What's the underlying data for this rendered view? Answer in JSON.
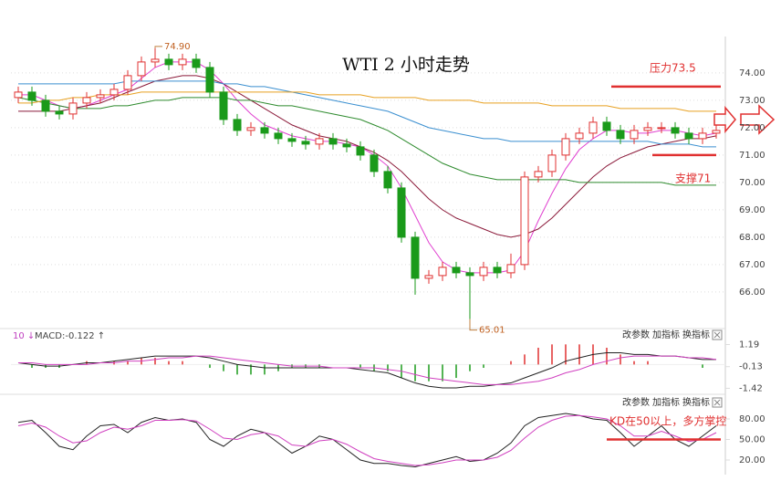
{
  "chart_data": [
    {
      "type": "candlestick",
      "title": "WTI 2 小时走势",
      "open": [
        73.1,
        73.3,
        73.0,
        72.6,
        72.5,
        72.9,
        73.1,
        73.2,
        73.4,
        73.9,
        74.4,
        74.5,
        74.3,
        74.5,
        74.2,
        73.3,
        72.3,
        71.9,
        72.0,
        71.8,
        71.6,
        71.5,
        71.4,
        71.6,
        71.4,
        71.3,
        71.0,
        70.4,
        69.8,
        68.0,
        66.5,
        66.6,
        66.9,
        66.7,
        66.6,
        66.9,
        66.7,
        67.0,
        70.2,
        70.4,
        71.0,
        71.6,
        71.8,
        72.2,
        71.9,
        71.6,
        71.9,
        72.0,
        72.0,
        71.8,
        71.6,
        71.8
      ],
      "high": [
        73.5,
        73.5,
        73.2,
        72.8,
        73.1,
        73.3,
        73.4,
        73.6,
        74.1,
        74.6,
        74.9,
        74.7,
        74.7,
        74.7,
        74.4,
        73.5,
        72.5,
        72.2,
        72.2,
        72.0,
        71.8,
        71.7,
        71.8,
        71.8,
        71.6,
        71.5,
        71.2,
        70.6,
        70.0,
        68.2,
        66.8,
        67.1,
        67.1,
        66.9,
        67.1,
        67.1,
        67.4,
        70.4,
        70.6,
        71.2,
        71.8,
        72.0,
        72.4,
        72.4,
        72.1,
        72.1,
        72.2,
        72.2,
        72.2,
        72.0,
        72.0,
        72.1
      ],
      "low": [
        72.9,
        72.8,
        72.4,
        72.3,
        72.3,
        72.7,
        72.9,
        73.0,
        73.2,
        73.7,
        74.2,
        74.1,
        74.1,
        74.0,
        73.1,
        72.1,
        71.7,
        71.7,
        71.6,
        71.4,
        71.3,
        71.2,
        71.2,
        71.2,
        71.1,
        70.8,
        70.2,
        69.6,
        67.8,
        65.9,
        66.3,
        66.4,
        66.5,
        65.01,
        66.4,
        66.5,
        66.5,
        66.8,
        70.0,
        70.2,
        70.8,
        71.4,
        71.6,
        71.7,
        71.4,
        71.4,
        71.7,
        71.8,
        71.6,
        71.4,
        71.4,
        71.6
      ],
      "close": [
        73.3,
        73.0,
        72.6,
        72.5,
        72.9,
        73.1,
        73.2,
        73.4,
        73.9,
        74.4,
        74.5,
        74.3,
        74.5,
        74.2,
        73.3,
        72.3,
        71.9,
        72.0,
        71.8,
        71.6,
        71.5,
        71.4,
        71.6,
        71.4,
        71.3,
        71.0,
        70.4,
        69.8,
        68.0,
        66.5,
        66.6,
        66.9,
        66.7,
        66.6,
        66.9,
        66.7,
        67.0,
        70.2,
        70.4,
        71.0,
        71.6,
        71.8,
        72.2,
        71.9,
        71.6,
        71.9,
        72.0,
        72.0,
        71.8,
        71.6,
        71.8,
        71.9
      ],
      "up_color": "#e03030",
      "down_color": "#1a9a1a",
      "series": [
        {
          "color": "#e040d0",
          "values": [
            73.2,
            73.2,
            73.0,
            72.8,
            72.7,
            72.8,
            73.0,
            73.2,
            73.4,
            73.8,
            74.2,
            74.4,
            74.4,
            74.4,
            74.1,
            73.6,
            73.0,
            72.5,
            72.1,
            71.9,
            71.7,
            71.6,
            71.5,
            71.5,
            71.4,
            71.3,
            71.0,
            70.6,
            69.8,
            68.8,
            67.8,
            67.1,
            66.8,
            66.7,
            66.7,
            66.7,
            66.8,
            67.5,
            68.6,
            69.6,
            70.5,
            71.2,
            71.6,
            71.9,
            71.9,
            71.8,
            71.8,
            71.9,
            71.9,
            71.8,
            71.7,
            71.8
          ]
        },
        {
          "color": "#8b1a3a",
          "values": [
            72.6,
            72.6,
            72.6,
            72.6,
            72.7,
            72.8,
            72.9,
            73.1,
            73.3,
            73.5,
            73.7,
            73.8,
            73.9,
            73.9,
            73.8,
            73.6,
            73.3,
            73.0,
            72.7,
            72.4,
            72.1,
            71.9,
            71.7,
            71.6,
            71.5,
            71.3,
            71.1,
            70.8,
            70.4,
            69.9,
            69.4,
            69.0,
            68.7,
            68.5,
            68.3,
            68.1,
            68.0,
            68.1,
            68.3,
            68.7,
            69.2,
            69.7,
            70.2,
            70.6,
            70.9,
            71.1,
            71.3,
            71.4,
            71.5,
            71.6,
            71.6,
            71.7
          ]
        },
        {
          "color": "#2e8b2e",
          "values": [
            73.1,
            73.0,
            72.9,
            72.8,
            72.7,
            72.7,
            72.7,
            72.8,
            72.8,
            72.9,
            73.0,
            73.0,
            73.1,
            73.1,
            73.1,
            73.1,
            73.0,
            73.0,
            72.9,
            72.8,
            72.8,
            72.7,
            72.6,
            72.5,
            72.4,
            72.3,
            72.1,
            71.9,
            71.6,
            71.3,
            71.0,
            70.7,
            70.5,
            70.3,
            70.2,
            70.1,
            70.1,
            70.1,
            70.1,
            70.1,
            70.1,
            70.0,
            70.0,
            70.0,
            70.0,
            70.0,
            70.0,
            70.0,
            69.9,
            69.9,
            69.9,
            69.9
          ]
        },
        {
          "color": "#3a8fd0",
          "values": [
            73.6,
            73.6,
            73.6,
            73.6,
            73.6,
            73.6,
            73.6,
            73.6,
            73.7,
            73.7,
            73.7,
            73.7,
            73.7,
            73.7,
            73.7,
            73.6,
            73.6,
            73.5,
            73.5,
            73.4,
            73.3,
            73.2,
            73.1,
            73.0,
            72.9,
            72.8,
            72.7,
            72.6,
            72.4,
            72.2,
            72.0,
            71.9,
            71.8,
            71.7,
            71.6,
            71.6,
            71.5,
            71.5,
            71.5,
            71.5,
            71.5,
            71.5,
            71.5,
            71.5,
            71.5,
            71.5,
            71.5,
            71.4,
            71.4,
            71.4,
            71.3,
            71.3
          ]
        },
        {
          "color": "#e8a020",
          "values": [
            72.9,
            72.9,
            73.0,
            73.0,
            73.1,
            73.1,
            73.2,
            73.2,
            73.2,
            73.3,
            73.3,
            73.3,
            73.3,
            73.3,
            73.3,
            73.3,
            73.3,
            73.3,
            73.3,
            73.3,
            73.3,
            73.3,
            73.2,
            73.2,
            73.2,
            73.2,
            73.1,
            73.1,
            73.1,
            73.1,
            73.0,
            73.0,
            73.0,
            73.0,
            72.9,
            72.9,
            72.9,
            72.9,
            72.9,
            72.8,
            72.8,
            72.8,
            72.8,
            72.8,
            72.7,
            72.7,
            72.7,
            72.7,
            72.7,
            72.6,
            72.6,
            72.6
          ]
        }
      ],
      "ylim": [
        64.83,
        75.33
      ],
      "yticks": [
        {
          "value": 74,
          "label": "74.00"
        },
        {
          "value": 73,
          "label": "73.00"
        },
        {
          "value": 72,
          "label": "72.00"
        },
        {
          "value": 71,
          "label": "71.00"
        },
        {
          "value": 70,
          "label": "70.00"
        },
        {
          "value": 69,
          "label": "69.00"
        },
        {
          "value": 68,
          "label": "68.00"
        },
        {
          "value": 67,
          "label": "67.00"
        },
        {
          "value": 66,
          "label": "66.00"
        }
      ],
      "grid": true,
      "extremes": [
        {
          "value": 74.9,
          "label": "74.90"
        },
        {
          "value": 65.01,
          "label": "65.01"
        }
      ],
      "annotations": [
        {
          "text": "压力73.5",
          "value": 73.5,
          "color": "#e03030"
        },
        {
          "text": "支撑71",
          "value": 71,
          "color": "#e03030"
        }
      ]
    },
    {
      "type": "macd",
      "period_label": "10 ↓",
      "header": "MACD:-0.122 ↑",
      "toolbar": [
        "改参数",
        "加指标",
        "换指标"
      ],
      "dif": [
        0.1,
        0.0,
        -0.1,
        -0.1,
        0.0,
        0.1,
        0.1,
        0.2,
        0.3,
        0.4,
        0.5,
        0.5,
        0.5,
        0.5,
        0.4,
        0.2,
        0.0,
        -0.1,
        -0.2,
        -0.2,
        -0.2,
        -0.2,
        -0.2,
        -0.2,
        -0.2,
        -0.3,
        -0.4,
        -0.5,
        -0.8,
        -1.1,
        -1.3,
        -1.4,
        -1.4,
        -1.3,
        -1.3,
        -1.2,
        -1.1,
        -0.8,
        -0.5,
        -0.2,
        0.2,
        0.4,
        0.6,
        0.7,
        0.7,
        0.6,
        0.6,
        0.5,
        0.5,
        0.4,
        0.3,
        0.3
      ],
      "dea": [
        0.1,
        0.1,
        0.0,
        0.0,
        0.0,
        0.0,
        0.1,
        0.1,
        0.2,
        0.2,
        0.3,
        0.4,
        0.4,
        0.5,
        0.5,
        0.4,
        0.3,
        0.2,
        0.1,
        0.0,
        -0.1,
        -0.1,
        -0.1,
        -0.2,
        -0.2,
        -0.2,
        -0.2,
        -0.3,
        -0.4,
        -0.6,
        -0.8,
        -0.9,
        -1.0,
        -1.1,
        -1.2,
        -1.2,
        -1.2,
        -1.1,
        -1.0,
        -0.8,
        -0.5,
        -0.3,
        0.0,
        0.2,
        0.4,
        0.5,
        0.5,
        0.5,
        0.5,
        0.4,
        0.4,
        0.3
      ],
      "hist": [
        0,
        -0.2,
        -0.2,
        -0.2,
        0,
        0.2,
        0,
        0.2,
        0.2,
        0.4,
        0.4,
        0.2,
        0.2,
        0,
        -0.2,
        -0.4,
        -0.6,
        -0.6,
        -0.6,
        -0.4,
        -0.2,
        -0.2,
        -0.2,
        0,
        0,
        -0.2,
        -0.4,
        -0.4,
        -0.8,
        -1.0,
        -1.0,
        -1.0,
        -0.8,
        -0.4,
        -0.2,
        0,
        0.2,
        0.6,
        1.0,
        1.2,
        1.2,
        1.2,
        1.2,
        1.0,
        0.6,
        0.2,
        0.2,
        0,
        0,
        0,
        -0.2,
        0
      ],
      "dif_color": "#222222",
      "dea_color": "#d040c0",
      "up_color": "#e03030",
      "down_color": "#1a9a1a",
      "ylim": [
        -1.67,
        1.49
      ],
      "yticks": [
        1.19,
        -0.13,
        -1.42
      ]
    },
    {
      "type": "kd",
      "toolbar": [
        "改参数",
        "加指标",
        "换指标"
      ],
      "k": [
        75,
        78,
        60,
        40,
        35,
        55,
        70,
        72,
        60,
        75,
        82,
        78,
        80,
        75,
        50,
        40,
        55,
        65,
        60,
        45,
        30,
        40,
        55,
        50,
        35,
        20,
        15,
        15,
        12,
        10,
        15,
        20,
        25,
        18,
        20,
        30,
        45,
        70,
        82,
        85,
        88,
        85,
        80,
        78,
        60,
        40,
        55,
        70,
        50,
        40,
        55,
        70
      ],
      "d": [
        70,
        74,
        68,
        55,
        45,
        48,
        60,
        68,
        65,
        70,
        78,
        78,
        79,
        77,
        65,
        52,
        50,
        57,
        60,
        55,
        42,
        40,
        48,
        50,
        43,
        32,
        22,
        18,
        15,
        12,
        13,
        16,
        20,
        20,
        20,
        24,
        34,
        52,
        68,
        78,
        84,
        85,
        83,
        80,
        70,
        55,
        55,
        62,
        55,
        47,
        50,
        60
      ],
      "k_color": "#222222",
      "d_color": "#d040c0",
      "ylim": [
        0,
        92
      ],
      "yticks": [
        {
          "value": 80,
          "label": "80.00"
        },
        {
          "value": 50,
          "label": "50.00"
        },
        {
          "value": 20,
          "label": "20.00"
        }
      ],
      "annotation": {
        "text": "KD在50以上，多方掌控",
        "value": 50,
        "color": "#e03030"
      }
    }
  ]
}
